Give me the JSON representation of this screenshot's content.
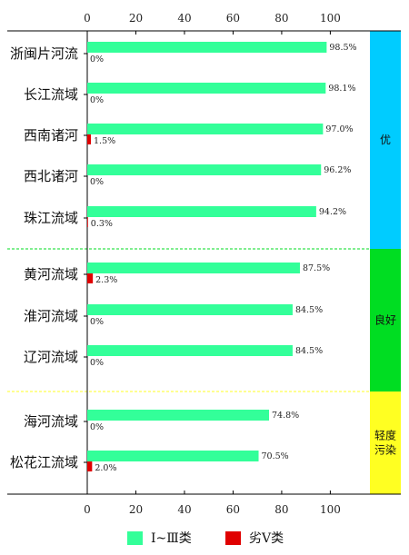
{
  "chart_data": {
    "type": "bar",
    "orientation": "horizontal",
    "categories": [
      "浙闽片河流",
      "长江流域",
      "西南诸河",
      "西北诸河",
      "珠江流域",
      "黄河流域",
      "淮河流域",
      "辽河流域",
      "海河流域",
      "松花江流域"
    ],
    "series": [
      {
        "name": "Ⅰ~Ⅲ类",
        "color": "#33ff99",
        "values": [
          98.5,
          98.1,
          97.0,
          96.2,
          94.2,
          87.5,
          84.5,
          84.5,
          74.8,
          70.5
        ],
        "labels": [
          "98.5%",
          "98.1%",
          "97.0%",
          "96.2%",
          "94.2%",
          "87.5%",
          "84.5%",
          "84.5%",
          "74.8%",
          "70.5%"
        ]
      },
      {
        "name": "劣Ⅴ类",
        "color": "#e00000",
        "values": [
          0,
          0,
          1.5,
          0,
          0.3,
          2.3,
          0,
          0,
          0,
          2.0
        ],
        "labels": [
          "0%",
          "0%",
          "1.5%",
          "0%",
          "0.3%",
          "2.3%",
          "0%",
          "0%",
          "0%",
          "2.0%"
        ]
      }
    ],
    "xlim": [
      0,
      115
    ],
    "xticks": [
      "0",
      "20",
      "40",
      "60",
      "80",
      "100"
    ],
    "xtick_values": [
      0,
      20,
      40,
      60,
      80,
      100
    ],
    "axis_ticks_position": "top and bottom",
    "grid": false,
    "bands": [
      {
        "label": "优",
        "from": 0,
        "to": 4,
        "color": "#00ccff"
      },
      {
        "label": "良好",
        "from": 5,
        "to": 7,
        "color": "#00dd22"
      },
      {
        "label": "轻度污染",
        "lines": [
          "轻度",
          "污染"
        ],
        "from": 8,
        "to": 9,
        "color": "#ffff22"
      }
    ],
    "legend": {
      "position": "bottom-center"
    }
  }
}
